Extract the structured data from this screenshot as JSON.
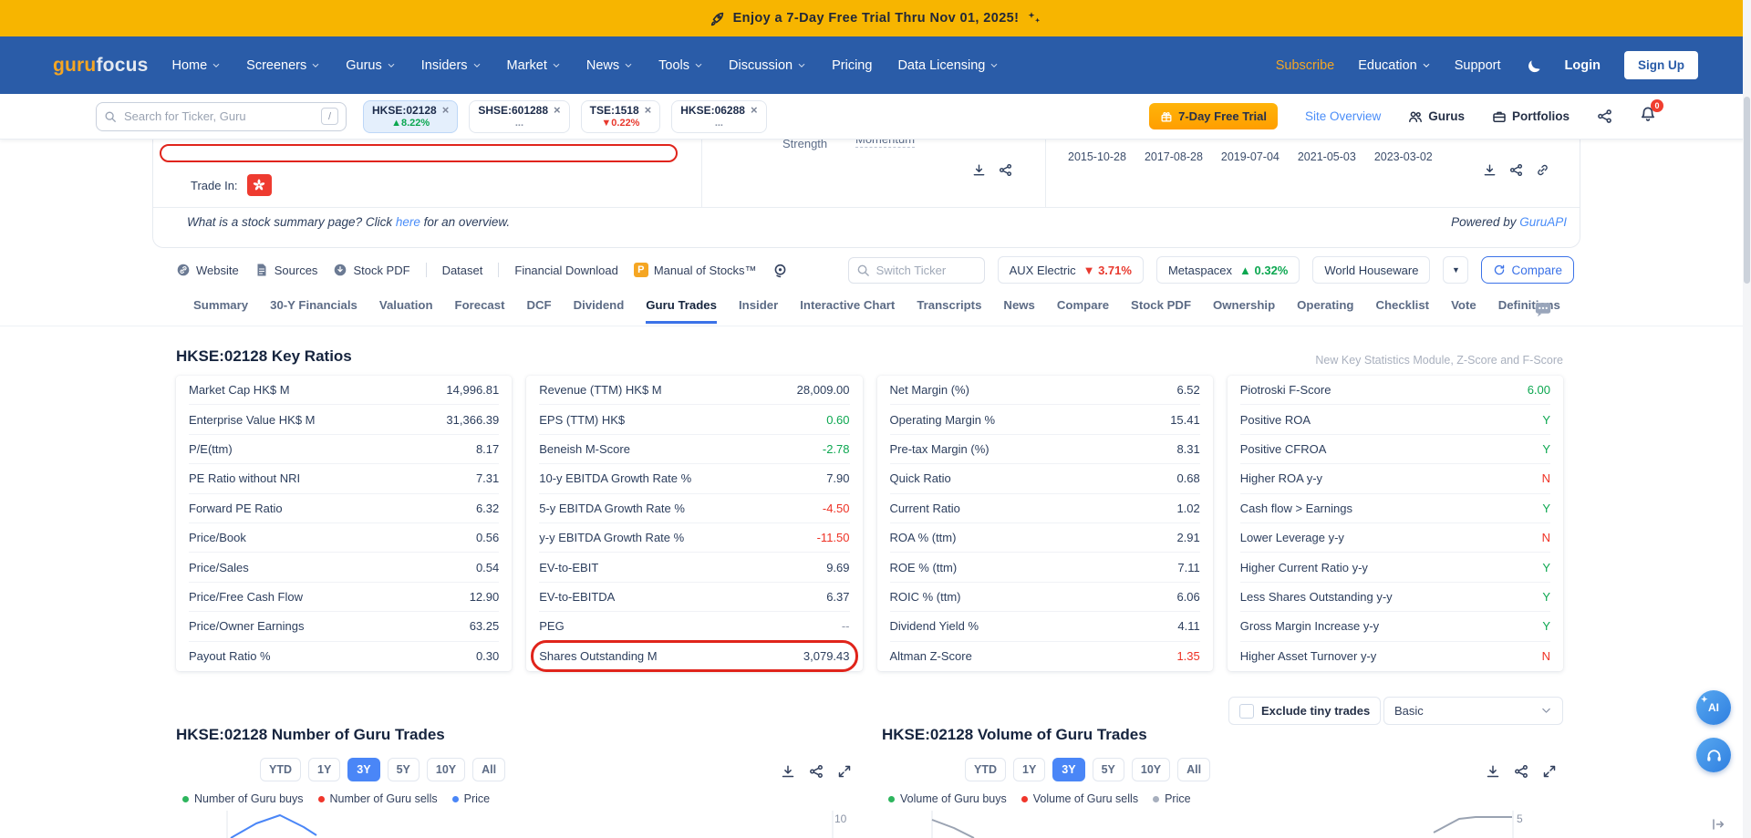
{
  "colors": {
    "banner_gold": "#F7B500",
    "nav_blue": "#2A5CA8",
    "accent_blue": "#3B72E8",
    "link_blue": "#4A8DF8",
    "positive_green": "#0CA750",
    "negative_red": "#EE3124",
    "annotation_red": "#E0241B"
  },
  "banner": {
    "text": "Enjoy a 7-Day Free Trial Thru Nov 01, 2025!"
  },
  "nav": {
    "logo": {
      "guru": "guru",
      "focus": "focus"
    },
    "items": [
      {
        "label": "Home",
        "chevron": true
      },
      {
        "label": "Screeners",
        "chevron": true
      },
      {
        "label": "Gurus",
        "chevron": true
      },
      {
        "label": "Insiders",
        "chevron": true
      },
      {
        "label": "Market",
        "chevron": true
      },
      {
        "label": "News",
        "chevron": true
      },
      {
        "label": "Tools",
        "chevron": true
      },
      {
        "label": "Discussion",
        "chevron": true
      },
      {
        "label": "Pricing",
        "chevron": false
      },
      {
        "label": "Data Licensing",
        "chevron": true
      }
    ],
    "right": {
      "subscribe": "Subscribe",
      "education": "Education",
      "support": "Support",
      "login": "Login",
      "signup": "Sign Up"
    }
  },
  "subheader": {
    "search_placeholder": "Search for Ticker, Guru",
    "search_shortcut": "/",
    "ticker_tabs": [
      {
        "ticker": "HKSE:02128",
        "change": "▲8.22%",
        "direction": "up",
        "active": true
      },
      {
        "ticker": "SHSE:601288",
        "change": "...",
        "direction": "none",
        "active": false
      },
      {
        "ticker": "TSE:1518",
        "change": "▼0.22%",
        "direction": "down",
        "active": false
      },
      {
        "ticker": "HKSE:06288",
        "change": "...",
        "direction": "none",
        "active": false
      }
    ],
    "trial_button": "7-Day Free Trial",
    "site_overview": "Site Overview",
    "gurus": "Gurus",
    "portfolios": "Portfolios",
    "notification_badge": "0"
  },
  "summary_card": {
    "strength_label": "Strength",
    "momentum_label": "Momentum",
    "chart_dates": [
      "2015-10-28",
      "2017-08-28",
      "2019-07-04",
      "2021-05-03",
      "2023-03-02"
    ],
    "trade_in_label": "Trade In:",
    "what_is": {
      "pre": "What is a stock summary page? Click ",
      "link": "here",
      "post": " for an overview."
    },
    "powered_by": {
      "pre": "Powered by ",
      "link": "GuruAPI"
    }
  },
  "toolbar": {
    "links": [
      {
        "label": "Website",
        "icon": "circlink",
        "divider_after": false
      },
      {
        "label": "Sources",
        "icon": "doc",
        "divider_after": false
      },
      {
        "label": "Stock PDF",
        "icon": "circdown",
        "divider_after": true
      },
      {
        "label": "Dataset",
        "icon": "",
        "divider_after": true
      },
      {
        "label": "Financial Download",
        "icon": "",
        "divider_after": false
      },
      {
        "label": "Manual of Stocks™",
        "icon": "pbadge",
        "divider_after": false
      }
    ],
    "switch_ticker_placeholder": "Switch Ticker",
    "compare_tickers": [
      {
        "name": "AUX Electric",
        "change": "▼ 3.71%",
        "direction": "down"
      },
      {
        "name": "Metaspacex",
        "change": "▲ 0.32%",
        "direction": "up"
      },
      {
        "name": "World Houseware",
        "change": "",
        "direction": "none"
      }
    ],
    "compare_button": "Compare"
  },
  "page_tabs": {
    "items": [
      "Summary",
      "30-Y Financials",
      "Valuation",
      "Forecast",
      "DCF",
      "Dividend",
      "Guru Trades",
      "Insider",
      "Interactive Chart",
      "Transcripts",
      "News",
      "Compare",
      "Stock PDF",
      "Ownership",
      "Operating",
      "Checklist",
      "Vote",
      "Definitions"
    ],
    "active": "Guru Trades"
  },
  "key_ratios": {
    "title": "HKSE:02128 Key Ratios",
    "note": "New Key Statistics Module, Z-Score and F-Score",
    "columns": [
      {
        "rows": [
          {
            "label": "Market Cap HK$ M",
            "value": "14,996.81"
          },
          {
            "label": "Enterprise Value HK$ M",
            "value": "31,366.39"
          },
          {
            "label": "P/E(ttm)",
            "value": "8.17"
          },
          {
            "label": "PE Ratio without NRI",
            "value": "7.31"
          },
          {
            "label": "Forward PE Ratio",
            "value": "6.32"
          },
          {
            "label": "Price/Book",
            "value": "0.56"
          },
          {
            "label": "Price/Sales",
            "value": "0.54"
          },
          {
            "label": "Price/Free Cash Flow",
            "value": "12.90"
          },
          {
            "label": "Price/Owner Earnings",
            "value": "63.25"
          },
          {
            "label": "Payout Ratio %",
            "value": "0.30"
          }
        ]
      },
      {
        "rows": [
          {
            "label": "Revenue (TTM) HK$ M",
            "value": "28,009.00"
          },
          {
            "label": "EPS (TTM) HK$",
            "value": "0.60",
            "color": "green"
          },
          {
            "label": "Beneish M-Score",
            "value": "-2.78",
            "color": "green"
          },
          {
            "label": "10-y EBITDA Growth Rate %",
            "value": "7.90"
          },
          {
            "label": "5-y EBITDA Growth Rate %",
            "value": "-4.50",
            "color": "red"
          },
          {
            "label": "y-y EBITDA Growth Rate %",
            "value": "-11.50",
            "color": "red"
          },
          {
            "label": "EV-to-EBIT",
            "value": "9.69"
          },
          {
            "label": "EV-to-EBITDA",
            "value": "6.37"
          },
          {
            "label": "PEG",
            "value": "--",
            "color": "muted"
          },
          {
            "label": "Shares Outstanding M",
            "value": "3,079.43",
            "highlight": true
          }
        ]
      },
      {
        "rows": [
          {
            "label": "Net Margin (%)",
            "value": "6.52"
          },
          {
            "label": "Operating Margin %",
            "value": "15.41"
          },
          {
            "label": "Pre-tax Margin (%)",
            "value": "8.31"
          },
          {
            "label": "Quick Ratio",
            "value": "0.68"
          },
          {
            "label": "Current Ratio",
            "value": "1.02"
          },
          {
            "label": "ROA % (ttm)",
            "value": "2.91"
          },
          {
            "label": "ROE % (ttm)",
            "value": "7.11"
          },
          {
            "label": "ROIC % (ttm)",
            "value": "6.06"
          },
          {
            "label": "Dividend Yield %",
            "value": "4.11"
          },
          {
            "label": "Altman Z-Score",
            "value": "1.35",
            "color": "red"
          }
        ]
      },
      {
        "rows": [
          {
            "label": "Piotroski F-Score",
            "value": "6.00",
            "color": "green"
          },
          {
            "label": "Positive ROA",
            "value": "Y",
            "color": "green"
          },
          {
            "label": "Positive CFROA",
            "value": "Y",
            "color": "green"
          },
          {
            "label": "Higher ROA y-y",
            "value": "N",
            "color": "red"
          },
          {
            "label": "Cash flow > Earnings",
            "value": "Y",
            "color": "green"
          },
          {
            "label": "Lower Leverage y-y",
            "value": "N",
            "color": "red"
          },
          {
            "label": "Higher Current Ratio y-y",
            "value": "Y",
            "color": "green"
          },
          {
            "label": "Less Shares Outstanding y-y",
            "value": "Y",
            "color": "green"
          },
          {
            "label": "Gross Margin Increase y-y",
            "value": "Y",
            "color": "green"
          },
          {
            "label": "Higher Asset Turnover y-y",
            "value": "N",
            "color": "red"
          }
        ]
      }
    ]
  },
  "charts": {
    "exclude_tiny_trades_label": "Exclude tiny trades",
    "view_option": "Basic",
    "ranges": [
      "YTD",
      "1Y",
      "3Y",
      "5Y",
      "10Y",
      "All"
    ],
    "active_range": "3Y",
    "left": {
      "title": "HKSE:02128 Number of Guru Trades",
      "y_axis_label": "10",
      "legend": [
        {
          "label": "Number of Guru buys",
          "color": "#2DB55D"
        },
        {
          "label": "Number of Guru sells",
          "color": "#F0362B"
        },
        {
          "label": "Price",
          "color": "#4A86F7"
        }
      ]
    },
    "right": {
      "title": "HKSE:02128 Volume of Guru Trades",
      "y_axis_label": "5",
      "legend": [
        {
          "label": "Volume of Guru buys",
          "color": "#2DB55D"
        },
        {
          "label": "Volume of Guru sells",
          "color": "#F0362B"
        },
        {
          "label": "Price",
          "color": "#A7AFBE"
        }
      ]
    }
  }
}
